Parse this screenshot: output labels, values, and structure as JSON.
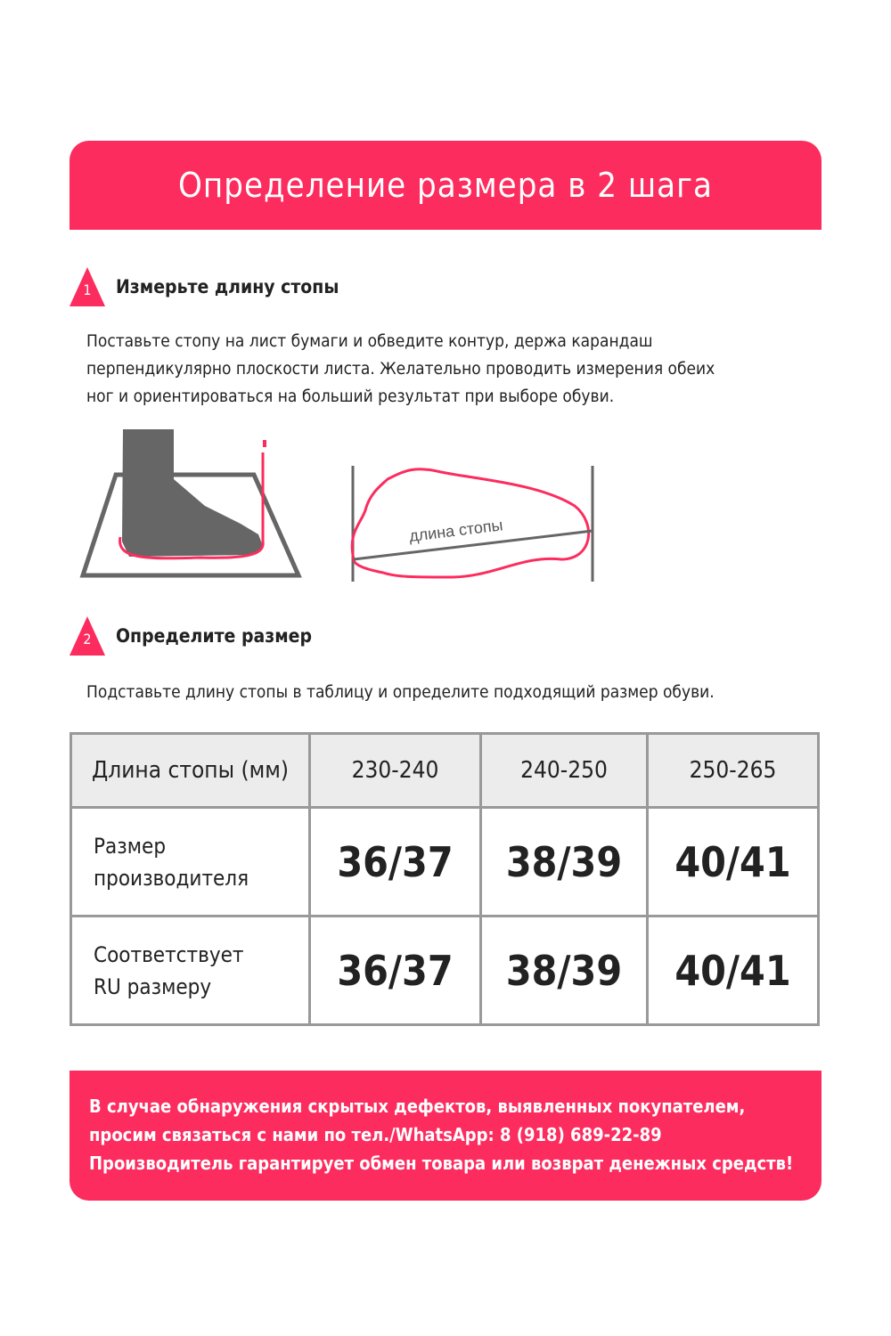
{
  "colors": {
    "accent": "#fc2c5e",
    "gray": "#666666"
  },
  "title": "Определение размера в 2 шага",
  "step1": {
    "number": "1",
    "heading": "Измерьте длину стопы",
    "text_lines": [
      "Поставьте стопу на лист бумаги и обведите контур, держа карандаш",
      "перпендикулярно плоскости листа. Желательно проводить измерения обеих",
      "ног и ориентироваться на больший результат при выборе обуви."
    ],
    "illustration_label": "длина стопы"
  },
  "step2": {
    "number": "2",
    "heading": "Определите размер",
    "text": "Подставьте длину стопы в таблицу и определите подходящий размер обуви."
  },
  "table": {
    "header": [
      "Длина стопы (мм)",
      "230-240",
      "240-250",
      "250-265"
    ],
    "rows": [
      {
        "label_lines": [
          "Размер",
          "производителя"
        ],
        "values": [
          "36/37",
          "38/39",
          "40/41"
        ]
      },
      {
        "label_lines": [
          "Соответствует",
          "RU размеру"
        ],
        "values": [
          "36/37",
          "38/39",
          "40/41"
        ]
      }
    ]
  },
  "footer": {
    "lines": [
      "В случае обнаружения скрытых дефектов, выявленных покупателем,",
      "просим связаться с нами по тел./WhatsApp: 8 (918) 689-22-89",
      "Производитель гарантирует обмен товара или возврат денежных средств!"
    ]
  }
}
